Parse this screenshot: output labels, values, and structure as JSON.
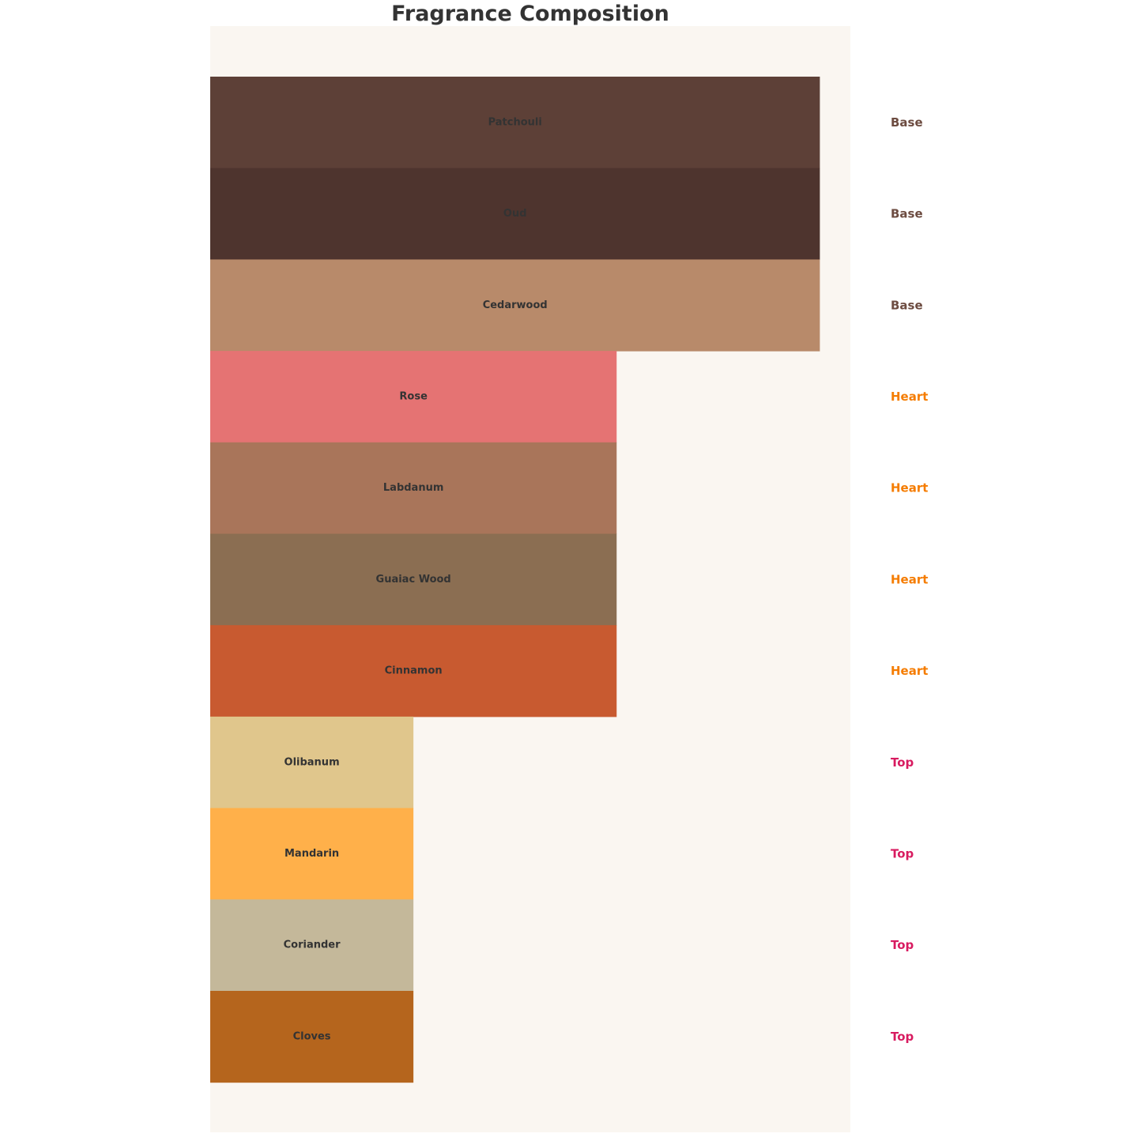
{
  "chart_data": {
    "type": "bar",
    "orientation": "horizontal",
    "title": "Fragrance Composition",
    "xlabel": "",
    "ylabel": "",
    "xlim": [
      0,
      3.15
    ],
    "grid": false,
    "categories": [
      "Patchouli",
      "Oud",
      "Cedarwood",
      "Rose",
      "Labdanum",
      "Guaiac Wood",
      "Cinnamon",
      "Olibanum",
      "Mandarin",
      "Coriander",
      "Cloves"
    ],
    "values": [
      3,
      3,
      3,
      2,
      2,
      2,
      2,
      1,
      1,
      1,
      1
    ],
    "note_types": [
      "Base",
      "Base",
      "Base",
      "Heart",
      "Heart",
      "Heart",
      "Heart",
      "Top",
      "Top",
      "Top",
      "Top"
    ],
    "bar_colors": [
      "#5D4037",
      "#4E342E",
      "#B88A6A",
      "#E57373",
      "#A9755A",
      "#8B6E52",
      "#C85A30",
      "#E0C68C",
      "#FFB04A",
      "#C4B89A",
      "#B5651D"
    ],
    "note_colors": {
      "Base": "#6D4C41",
      "Heart": "#F57C00",
      "Top": "#D81B60"
    },
    "plot_background": "#FAF6F1",
    "bar_label_color": "#333333"
  }
}
